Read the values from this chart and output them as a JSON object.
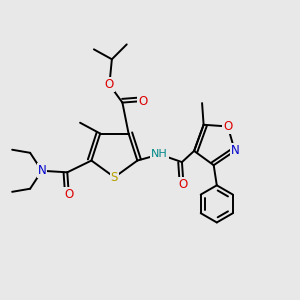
{
  "bg_color": "#e8e8e8",
  "bond_color": "#000000",
  "bond_lw": 1.4,
  "atom_colors": {
    "S": "#b8a000",
    "N": "#0000cc",
    "O": "#dd0000",
    "NH": "#008888",
    "C": "#000000"
  },
  "font_size": 8.5
}
